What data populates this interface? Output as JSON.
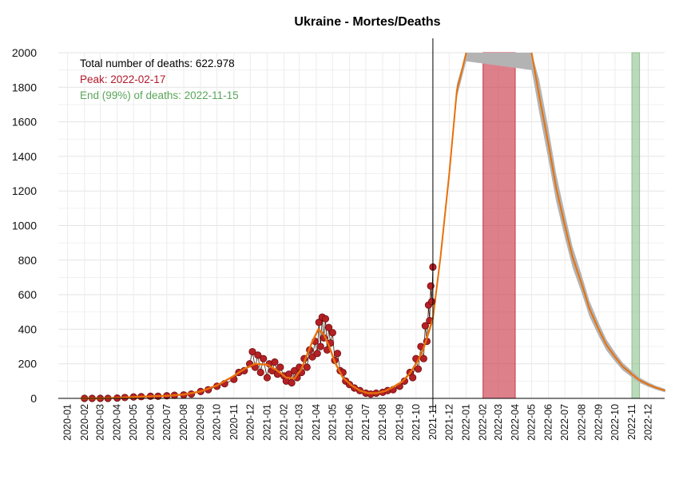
{
  "chart_data": {
    "type": "line",
    "title": "Ukraine - Mortes/Deaths",
    "xlabel": "",
    "ylabel": "",
    "ylim": [
      0,
      2000
    ],
    "y_ticks": [
      0,
      200,
      400,
      600,
      800,
      1000,
      1200,
      1400,
      1600,
      1800,
      2000
    ],
    "x_range": [
      "2019-12-15",
      "2022-12-31"
    ],
    "x_tick_labels": [
      "2020-01",
      "2020-02",
      "2020-03",
      "2020-04",
      "2020-05",
      "2020-06",
      "2020-07",
      "2020-08",
      "2020-09",
      "2020-10",
      "2020-11",
      "2020-12",
      "2021-01",
      "2021-02",
      "2021-03",
      "2021-04",
      "2021-05",
      "2021-06",
      "2021-07",
      "2021-08",
      "2021-09",
      "2021-10",
      "2021-11",
      "2021-12",
      "2022-01",
      "2022-02",
      "2022-03",
      "2022-04",
      "2022-05",
      "2022-06",
      "2022-07",
      "2022-08",
      "2022-09",
      "2022-10",
      "2022-11",
      "2022-12"
    ],
    "grid": true,
    "annotations": {
      "total": "Total number of deaths: 622.978",
      "peak": "Peak: 2022-02-17",
      "end": "End (99%) of deaths: 2022-11-15"
    },
    "current_date": "2021-11-01",
    "peak_band": [
      "2022-02-01",
      "2022-04-01"
    ],
    "end_band": [
      "2022-11-01",
      "2022-11-15"
    ],
    "smooth_fit": {
      "x": [
        "2020-01-25",
        "2020-03-01",
        "2020-04-01",
        "2020-05-01",
        "2020-06-01",
        "2020-07-01",
        "2020-08-01",
        "2020-09-01",
        "2020-10-01",
        "2020-11-01",
        "2020-11-20",
        "2020-12-10",
        "2021-01-01",
        "2021-01-20",
        "2021-02-05",
        "2021-02-20",
        "2021-03-05",
        "2021-03-15",
        "2021-03-25",
        "2021-04-05",
        "2021-04-15",
        "2021-04-25",
        "2021-05-05",
        "2021-05-20",
        "2021-06-05",
        "2021-06-20",
        "2021-07-05",
        "2021-07-20",
        "2021-08-05",
        "2021-08-20",
        "2021-09-05",
        "2021-09-20",
        "2021-10-05",
        "2021-10-15",
        "2021-10-25",
        "2021-11-01"
      ],
      "y": [
        0,
        0,
        3,
        8,
        12,
        15,
        22,
        40,
        75,
        130,
        170,
        200,
        195,
        160,
        120,
        115,
        170,
        250,
        330,
        400,
        370,
        300,
        210,
        120,
        75,
        45,
        30,
        30,
        42,
        65,
        95,
        145,
        220,
        290,
        390,
        460
      ]
    },
    "projection": {
      "x": [
        "2021-11-01",
        "2021-11-15",
        "2021-12-01",
        "2021-12-15",
        "2022-01-01",
        "2022-05-01",
        "2022-05-15",
        "2022-06-01",
        "2022-06-15",
        "2022-07-01",
        "2022-07-15",
        "2022-08-01",
        "2022-08-15",
        "2022-09-01",
        "2022-09-15",
        "2022-10-01",
        "2022-10-15",
        "2022-11-01",
        "2022-11-15",
        "2022-12-01",
        "2022-12-15",
        "2023-01-01"
      ],
      "y": [
        460,
        820,
        1300,
        1780,
        2000,
        2000,
        1750,
        1470,
        1220,
        1000,
        820,
        660,
        520,
        400,
        310,
        240,
        185,
        140,
        105,
        80,
        62,
        45
      ],
      "band_half_width": [
        10,
        20,
        30,
        40,
        50,
        100,
        95,
        90,
        80,
        70,
        60,
        52,
        45,
        38,
        32,
        26,
        22,
        18,
        15,
        13,
        11,
        10
      ]
    },
    "observed": {
      "x": [
        "2020-02-01",
        "2020-02-15",
        "2020-03-01",
        "2020-03-15",
        "2020-04-01",
        "2020-04-15",
        "2020-05-01",
        "2020-05-15",
        "2020-06-01",
        "2020-06-15",
        "2020-07-01",
        "2020-07-15",
        "2020-08-01",
        "2020-08-15",
        "2020-09-01",
        "2020-09-15",
        "2020-10-01",
        "2020-10-15",
        "2020-11-01",
        "2020-11-10",
        "2020-11-20",
        "2020-11-30",
        "2020-12-05",
        "2020-12-10",
        "2020-12-15",
        "2020-12-20",
        "2020-12-25",
        "2021-01-01",
        "2021-01-05",
        "2021-01-10",
        "2021-01-15",
        "2021-01-20",
        "2021-01-25",
        "2021-02-01",
        "2021-02-05",
        "2021-02-10",
        "2021-02-15",
        "2021-02-20",
        "2021-02-25",
        "2021-03-01",
        "2021-03-05",
        "2021-03-10",
        "2021-03-15",
        "2021-03-20",
        "2021-03-25",
        "2021-03-30",
        "2021-04-03",
        "2021-04-06",
        "2021-04-09",
        "2021-04-12",
        "2021-04-15",
        "2021-04-18",
        "2021-04-21",
        "2021-04-24",
        "2021-04-27",
        "2021-05-01",
        "2021-05-05",
        "2021-05-10",
        "2021-05-15",
        "2021-05-20",
        "2021-05-25",
        "2021-06-01",
        "2021-06-10",
        "2021-06-20",
        "2021-07-01",
        "2021-07-10",
        "2021-07-20",
        "2021-08-01",
        "2021-08-10",
        "2021-08-20",
        "2021-09-01",
        "2021-09-10",
        "2021-09-20",
        "2021-09-25",
        "2021-10-01",
        "2021-10-05",
        "2021-10-10",
        "2021-10-15",
        "2021-10-18",
        "2021-10-21",
        "2021-10-24",
        "2021-10-26",
        "2021-10-28",
        "2021-10-30",
        "2021-11-01"
      ],
      "y": [
        0,
        0,
        0,
        0,
        2,
        5,
        8,
        10,
        12,
        12,
        15,
        18,
        20,
        25,
        40,
        50,
        70,
        85,
        110,
        150,
        160,
        200,
        270,
        180,
        250,
        150,
        230,
        120,
        200,
        160,
        210,
        140,
        180,
        130,
        100,
        140,
        90,
        160,
        120,
        180,
        150,
        230,
        180,
        280,
        240,
        330,
        260,
        440,
        300,
        470,
        350,
        460,
        280,
        410,
        320,
        380,
        220,
        260,
        160,
        150,
        100,
        80,
        60,
        45,
        30,
        25,
        30,
        35,
        45,
        50,
        70,
        100,
        150,
        120,
        230,
        170,
        300,
        230,
        420,
        330,
        540,
        450,
        650,
        560,
        760
      ]
    }
  }
}
